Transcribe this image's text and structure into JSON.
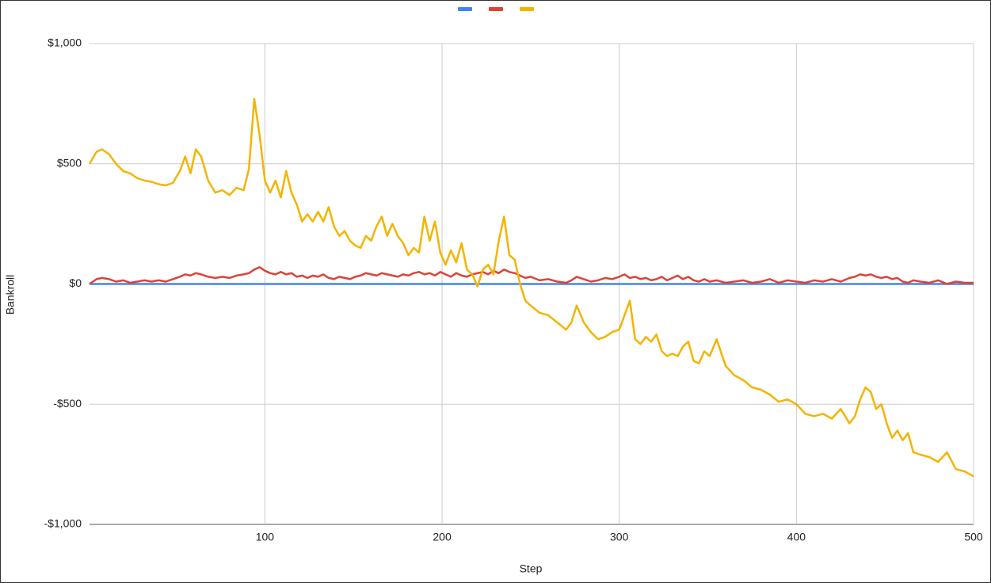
{
  "chart_data": {
    "type": "line",
    "x_label": "Step",
    "y_label": "Bankroll",
    "xlim": [
      1,
      500
    ],
    "xticks": [
      100,
      200,
      300,
      400,
      500
    ],
    "ylim": [
      -1000,
      1000
    ],
    "yticks": [
      {
        "value": -1000,
        "label": "-$1,000"
      },
      {
        "value": -500,
        "label": "-$500"
      },
      {
        "value": 0,
        "label": "$0"
      },
      {
        "value": 500,
        "label": "$500"
      },
      {
        "value": 1000,
        "label": "$1,000"
      }
    ],
    "grid": true,
    "legend": "top",
    "x": [
      1,
      5,
      8,
      12,
      16,
      20,
      24,
      28,
      32,
      36,
      40,
      44,
      48,
      52,
      55,
      58,
      61,
      64,
      68,
      72,
      76,
      80,
      84,
      88,
      91,
      94,
      97,
      100,
      103,
      106,
      109,
      112,
      115,
      118,
      121,
      124,
      127,
      130,
      133,
      136,
      139,
      142,
      145,
      148,
      151,
      154,
      157,
      160,
      163,
      166,
      169,
      172,
      175,
      178,
      181,
      184,
      187,
      190,
      193,
      196,
      199,
      202,
      205,
      208,
      211,
      214,
      217,
      220,
      223,
      226,
      229,
      232,
      235,
      238,
      241,
      244,
      247,
      250,
      255,
      260,
      265,
      270,
      273,
      276,
      280,
      284,
      288,
      292,
      296,
      300,
      303,
      306,
      309,
      312,
      315,
      318,
      321,
      324,
      327,
      330,
      333,
      336,
      339,
      342,
      345,
      348,
      351,
      355,
      360,
      365,
      370,
      375,
      380,
      385,
      390,
      395,
      400,
      405,
      410,
      415,
      420,
      425,
      430,
      433,
      436,
      439,
      442,
      445,
      448,
      451,
      454,
      457,
      460,
      463,
      466,
      470,
      475,
      480,
      485,
      490,
      495,
      500
    ],
    "series": [
      {
        "color": "#4285f4",
        "values": [
          0,
          0,
          0,
          0,
          0,
          0,
          0,
          0,
          0,
          0,
          0,
          0,
          0,
          0,
          0,
          0,
          0,
          0,
          0,
          0,
          0,
          0,
          0,
          0,
          0,
          0,
          0,
          0,
          0,
          0,
          0,
          0,
          0,
          0,
          0,
          0,
          0,
          0,
          0,
          0,
          0,
          0,
          0,
          0,
          0,
          0,
          0,
          0,
          0,
          0,
          0,
          0,
          0,
          0,
          0,
          0,
          0,
          0,
          0,
          0,
          0,
          0,
          0,
          0,
          0,
          0,
          0,
          0,
          0,
          0,
          0,
          0,
          0,
          0,
          0,
          0,
          0,
          0,
          0,
          0,
          0,
          0,
          0,
          0,
          0,
          0,
          0,
          0,
          0,
          0,
          0,
          0,
          0,
          0,
          0,
          0,
          0,
          0,
          0,
          0,
          0,
          0,
          0,
          0,
          0,
          0,
          0,
          0,
          0,
          0,
          0,
          0,
          0,
          0,
          0,
          0,
          0,
          0,
          0,
          0,
          0,
          0,
          0,
          0,
          0,
          0,
          0,
          0,
          0,
          0,
          0,
          0,
          0,
          0,
          0,
          0,
          0,
          0,
          0,
          0,
          0,
          0
        ]
      },
      {
        "color": "#db4437",
        "values": [
          0,
          20,
          25,
          20,
          10,
          15,
          5,
          10,
          15,
          10,
          15,
          10,
          20,
          30,
          40,
          35,
          45,
          40,
          30,
          25,
          30,
          25,
          35,
          40,
          45,
          60,
          70,
          55,
          45,
          40,
          50,
          40,
          45,
          30,
          35,
          25,
          35,
          30,
          40,
          25,
          20,
          30,
          25,
          20,
          30,
          35,
          45,
          40,
          35,
          45,
          40,
          35,
          30,
          40,
          35,
          45,
          50,
          40,
          45,
          35,
          50,
          40,
          30,
          45,
          35,
          30,
          40,
          45,
          50,
          40,
          55,
          45,
          60,
          50,
          45,
          35,
          25,
          30,
          15,
          20,
          10,
          5,
          15,
          30,
          20,
          10,
          15,
          25,
          20,
          30,
          40,
          25,
          30,
          20,
          25,
          15,
          20,
          30,
          15,
          25,
          35,
          20,
          30,
          15,
          10,
          20,
          10,
          15,
          5,
          10,
          15,
          5,
          10,
          20,
          5,
          15,
          10,
          5,
          15,
          10,
          20,
          10,
          25,
          30,
          40,
          35,
          40,
          30,
          25,
          30,
          20,
          25,
          10,
          5,
          15,
          10,
          5,
          15,
          0,
          10,
          5,
          5
        ]
      },
      {
        "color": "#f4b400",
        "values": [
          500,
          550,
          560,
          540,
          500,
          470,
          460,
          440,
          430,
          425,
          415,
          410,
          420,
          470,
          530,
          460,
          560,
          530,
          430,
          380,
          390,
          370,
          400,
          390,
          480,
          770,
          620,
          430,
          380,
          430,
          360,
          470,
          380,
          330,
          260,
          290,
          260,
          300,
          260,
          320,
          240,
          200,
          220,
          180,
          160,
          150,
          200,
          180,
          240,
          280,
          200,
          250,
          200,
          170,
          120,
          150,
          130,
          280,
          180,
          260,
          130,
          80,
          140,
          90,
          170,
          60,
          40,
          -10,
          60,
          80,
          40,
          180,
          280,
          120,
          100,
          0,
          -70,
          -90,
          -120,
          -130,
          -160,
          -190,
          -160,
          -90,
          -160,
          -200,
          -230,
          -220,
          -200,
          -190,
          -130,
          -70,
          -230,
          -250,
          -220,
          -240,
          -210,
          -280,
          -300,
          -290,
          -300,
          -260,
          -240,
          -320,
          -330,
          -280,
          -300,
          -230,
          -340,
          -380,
          -400,
          -430,
          -440,
          -460,
          -490,
          -480,
          -500,
          -540,
          -550,
          -540,
          -560,
          -520,
          -580,
          -550,
          -480,
          -430,
          -450,
          -520,
          -500,
          -580,
          -640,
          -610,
          -650,
          -620,
          -700,
          -710,
          -720,
          -740,
          -700,
          -770,
          -780,
          -800
        ]
      }
    ]
  }
}
